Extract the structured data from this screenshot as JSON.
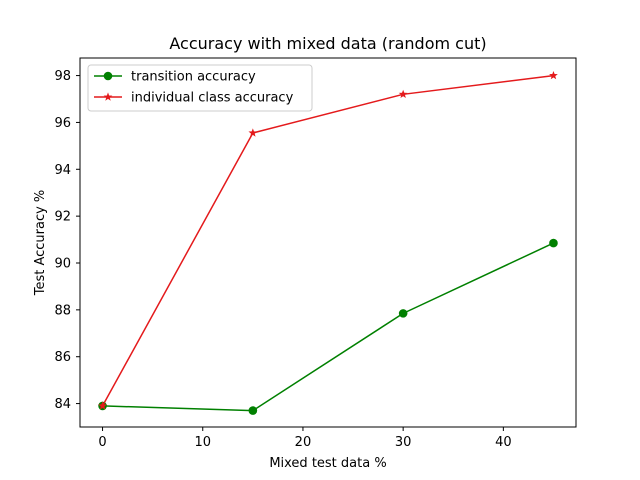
{
  "chart_data": {
    "type": "line",
    "title": "Accuracy with mixed data (random cut)",
    "xlabel": "Mixed test data %",
    "ylabel": "Test Accuracy %",
    "xlim": [
      -2.25,
      47.25
    ],
    "ylim": [
      83.0,
      98.75
    ],
    "xticks": [
      0,
      10,
      20,
      30,
      40
    ],
    "yticks": [
      84,
      86,
      88,
      90,
      92,
      94,
      96,
      98
    ],
    "x": [
      0,
      15,
      30,
      45
    ],
    "grid": false,
    "legend_position": "upper-left",
    "series": [
      {
        "name": "transition accuracy",
        "values": [
          83.9,
          83.7,
          87.85,
          90.85
        ],
        "color": "#008000",
        "marker": "circle"
      },
      {
        "name": "individual class accuracy",
        "values": [
          83.9,
          95.55,
          97.2,
          98.0
        ],
        "color": "#e41a1c",
        "marker": "star"
      }
    ]
  }
}
